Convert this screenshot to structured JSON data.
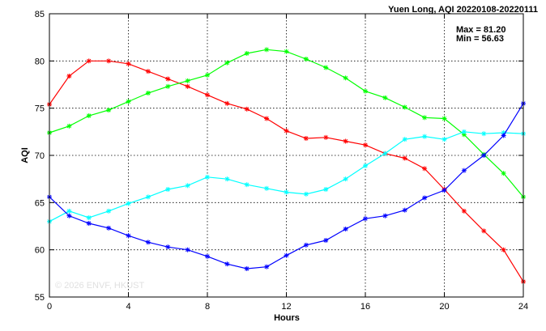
{
  "chart_data": {
    "type": "line",
    "title": "Yuen Long, AQI 20220108-20220111",
    "xlabel": "Hours",
    "ylabel": "AQI",
    "xlim": [
      0,
      24
    ],
    "ylim": [
      55,
      85
    ],
    "x_ticks": [
      0,
      4,
      8,
      12,
      16,
      20,
      24
    ],
    "y_ticks": [
      55,
      60,
      65,
      70,
      75,
      80,
      85
    ],
    "grid": true,
    "stats": {
      "max": "Max = 81.20",
      "min": "Min = 56.63"
    },
    "watermark": "© 2026  ENVF, HKUST",
    "x": [
      0,
      1,
      2,
      3,
      4,
      5,
      6,
      7,
      8,
      9,
      10,
      11,
      12,
      13,
      14,
      15,
      16,
      17,
      18,
      19,
      20,
      21,
      22,
      23,
      24
    ],
    "series": [
      {
        "color": "#ff0000",
        "values": [
          75.4,
          78.4,
          80.0,
          80.0,
          79.7,
          78.9,
          78.1,
          77.3,
          76.4,
          75.5,
          74.9,
          73.9,
          72.6,
          71.8,
          71.9,
          71.5,
          71.1,
          70.2,
          69.7,
          68.6,
          66.4,
          64.1,
          62.0,
          60.0,
          56.63
        ]
      },
      {
        "color": "#00ff00",
        "values": [
          72.4,
          73.1,
          74.2,
          74.8,
          75.7,
          76.6,
          77.3,
          77.9,
          78.5,
          79.8,
          80.8,
          81.2,
          81.0,
          80.2,
          79.3,
          78.2,
          76.8,
          76.1,
          75.1,
          74.0,
          73.9,
          72.2,
          70.1,
          68.1,
          65.6
        ]
      },
      {
        "color": "#00ffff",
        "values": [
          63.0,
          64.1,
          63.4,
          64.1,
          64.9,
          65.6,
          66.4,
          66.8,
          67.7,
          67.5,
          66.9,
          66.5,
          66.1,
          65.9,
          66.4,
          67.5,
          68.9,
          70.2,
          71.7,
          72.0,
          71.7,
          72.5,
          72.3,
          72.4,
          72.3
        ]
      },
      {
        "color": "#0000ff",
        "values": [
          65.6,
          63.6,
          62.8,
          62.3,
          61.5,
          60.8,
          60.3,
          60.0,
          59.3,
          58.5,
          58.0,
          58.2,
          59.4,
          60.5,
          61.0,
          62.2,
          63.3,
          63.6,
          64.2,
          65.5,
          66.3,
          68.4,
          70.0,
          72.1,
          75.5
        ]
      }
    ]
  }
}
